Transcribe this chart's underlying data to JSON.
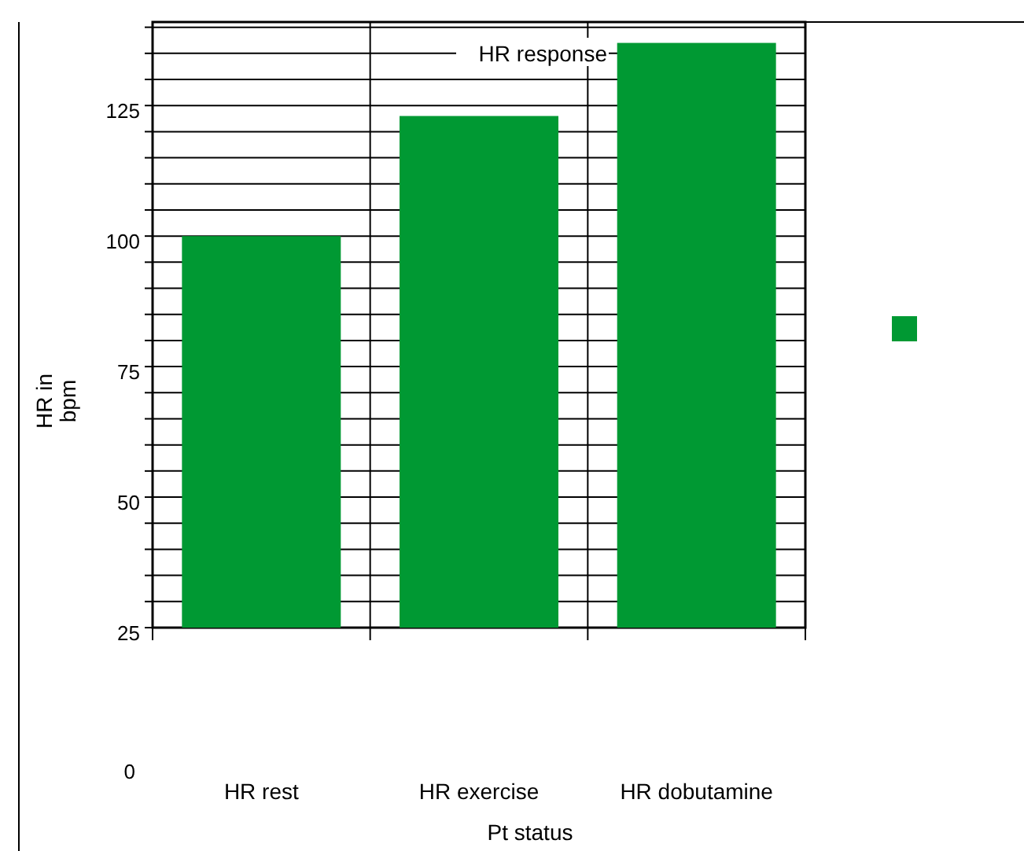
{
  "chart_data": {
    "type": "bar",
    "title": "HR response",
    "xlabel": "Pt status",
    "ylabel": "HR in bpm",
    "categories": [
      "HR rest",
      "HR exercise",
      "HR dobutamine"
    ],
    "series": [
      {
        "color": "#009933",
        "values": [
          100,
          123,
          137
        ]
      }
    ],
    "ylim": [
      25,
      141
    ],
    "yticks": [
      25,
      {
        "value": 30,
        "label": null
      },
      {
        "value": 35,
        "label": null
      },
      {
        "value": 40,
        "label": null
      },
      {
        "value": 45,
        "label": null
      },
      50,
      {
        "value": 55,
        "label": null
      },
      {
        "value": 60,
        "label": null
      },
      {
        "value": 65,
        "label": null
      },
      {
        "value": 70,
        "label": null
      },
      75,
      {
        "value": 80,
        "label": null
      },
      {
        "value": 85,
        "label": null
      },
      {
        "value": 90,
        "label": null
      },
      {
        "value": 95,
        "label": null
      },
      100,
      {
        "value": 105,
        "label": null
      },
      {
        "value": 110,
        "label": null
      },
      {
        "value": 115,
        "label": null
      },
      {
        "value": 120,
        "label": null
      },
      125,
      {
        "value": 130,
        "label": null
      },
      {
        "value": 135,
        "label": null
      },
      {
        "value": 140,
        "label": null
      }
    ],
    "grid": true,
    "annotations": [
      "0"
    ]
  }
}
